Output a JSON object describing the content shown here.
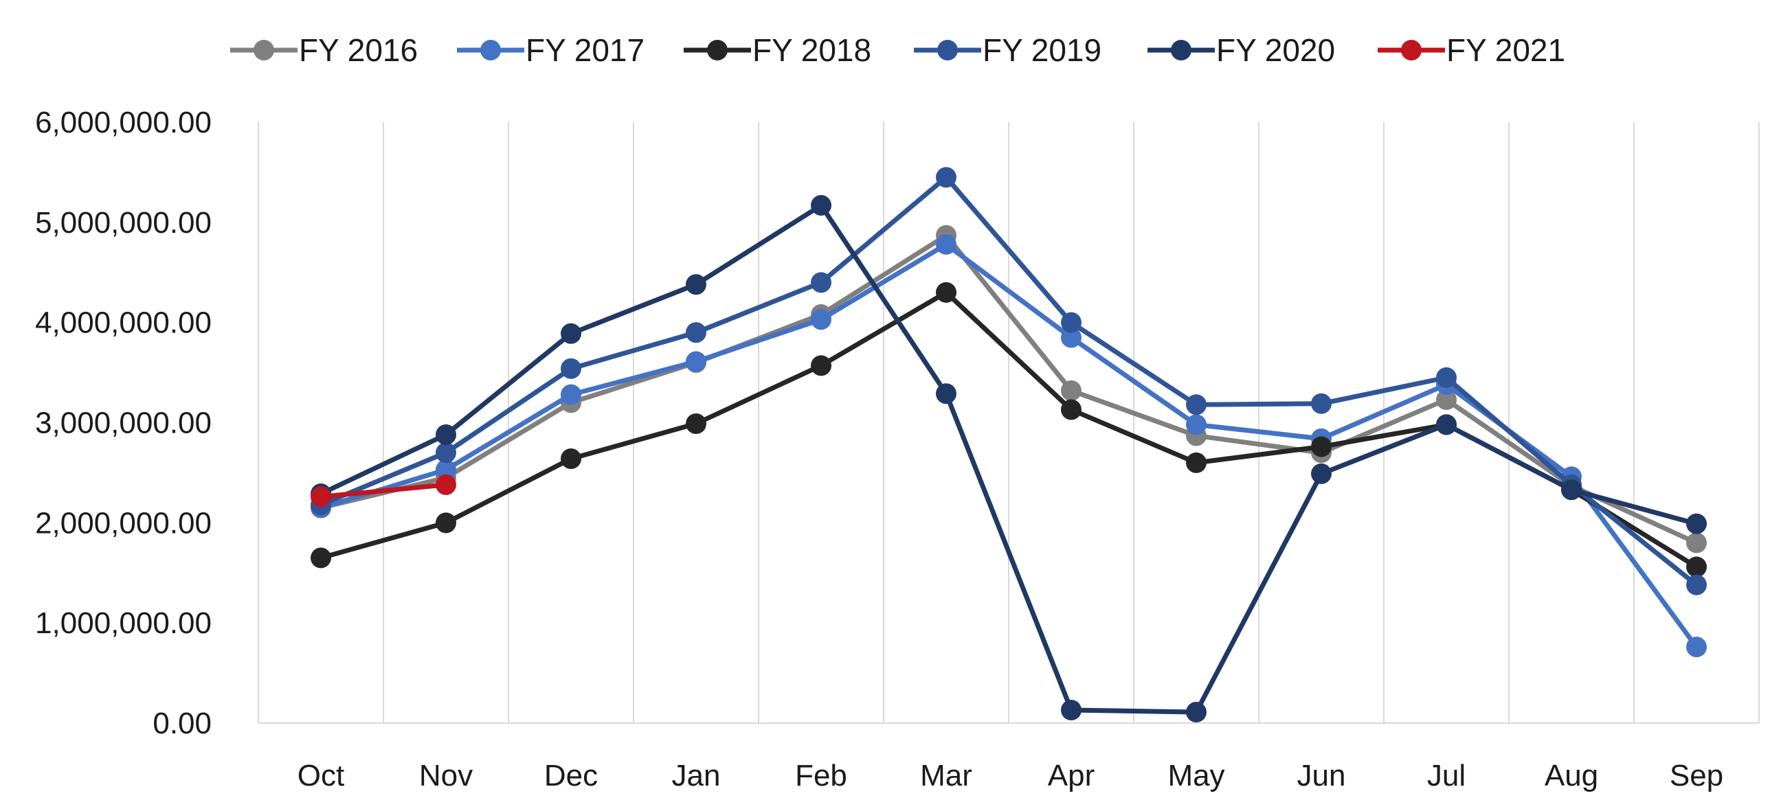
{
  "chart_data": {
    "type": "line",
    "title": "",
    "xlabel": "",
    "ylabel": "",
    "categories": [
      "Oct",
      "Nov",
      "Dec",
      "Jan",
      "Feb",
      "Mar",
      "Apr",
      "May",
      "Jun",
      "Jul",
      "Aug",
      "Sep"
    ],
    "ylim": [
      0,
      6000000
    ],
    "yticks": [
      0,
      1000000,
      2000000,
      3000000,
      4000000,
      5000000,
      6000000
    ],
    "ytick_labels": [
      "0.00",
      "1,000,000.00",
      "2,000,000.00",
      "3,000,000.00",
      "4,000,000.00",
      "5,000,000.00",
      "6,000,000.00"
    ],
    "grid": "vertical",
    "legend_position": "top",
    "series": [
      {
        "name": "FY 2016",
        "color": "#808080",
        "values": [
          2150000,
          2450000,
          3200000,
          3600000,
          4080000,
          4870000,
          3320000,
          2870000,
          2700000,
          3230000,
          2370000,
          1800000
        ]
      },
      {
        "name": "FY 2017",
        "color": "#4472C4",
        "values": [
          2150000,
          2530000,
          3280000,
          3610000,
          4030000,
          4780000,
          3850000,
          2980000,
          2840000,
          3380000,
          2460000,
          760000
        ]
      },
      {
        "name": "FY 2018",
        "color": "#262626",
        "values": [
          1650000,
          2000000,
          2640000,
          2990000,
          3570000,
          4300000,
          3130000,
          2600000,
          2760000,
          2980000,
          2330000,
          1560000
        ]
      },
      {
        "name": "FY 2019",
        "color": "#2F5597",
        "values": [
          2180000,
          2700000,
          3540000,
          3900000,
          4400000,
          5450000,
          4000000,
          3180000,
          3190000,
          3450000,
          2380000,
          1380000
        ]
      },
      {
        "name": "FY 2020",
        "color": "#203864",
        "values": [
          2290000,
          2880000,
          3890000,
          4380000,
          5170000,
          3290000,
          130000,
          110000,
          2490000,
          2980000,
          2330000,
          1990000
        ]
      },
      {
        "name": "FY 2021",
        "color": "#C0161F",
        "values": [
          2260000,
          2380000,
          null,
          null,
          null,
          null,
          null,
          null,
          null,
          null,
          null,
          null
        ]
      }
    ]
  }
}
